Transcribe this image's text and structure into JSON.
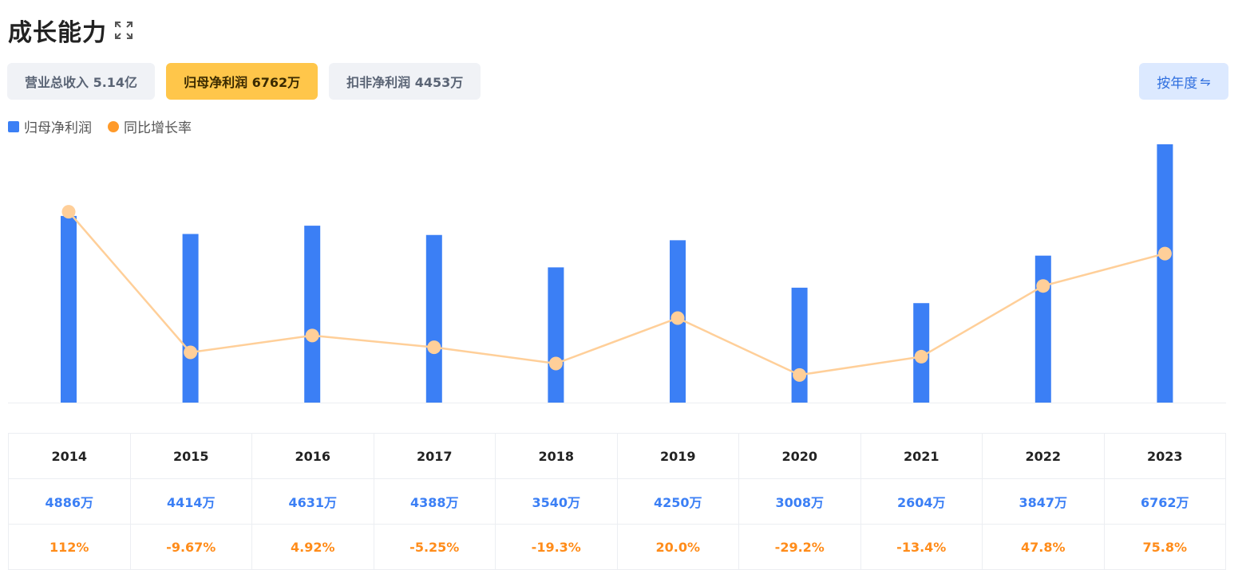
{
  "header": {
    "title": "成长能力",
    "expand_icon": "expand-icon"
  },
  "tabs": [
    {
      "label": "营业总收入 5.14亿",
      "active": false
    },
    {
      "label": "归母净利润 6762万",
      "active": true
    },
    {
      "label": "扣非净利润 4453万",
      "active": false
    }
  ],
  "period_button": {
    "label": "按年度",
    "icon": "swap-icon",
    "glyph": "⇋"
  },
  "legend": [
    {
      "label": "归母净利润",
      "color": "#3b7ff5"
    },
    {
      "label": "同比增长率",
      "color": "#ff9a2a"
    }
  ],
  "chart_data": {
    "type": "bar",
    "categories": [
      "2014",
      "2015",
      "2016",
      "2017",
      "2018",
      "2019",
      "2020",
      "2021",
      "2022",
      "2023"
    ],
    "series": [
      {
        "name": "归母净利润",
        "type": "bar",
        "unit": "万",
        "color": "#3b7ff5",
        "values": [
          4886,
          4414,
          4631,
          4388,
          3540,
          4250,
          3008,
          2604,
          3847,
          6762
        ]
      },
      {
        "name": "同比增长率",
        "type": "line",
        "unit": "%",
        "color": "#ffcf99",
        "values": [
          112,
          -9.67,
          4.92,
          -5.25,
          -19.3,
          20.0,
          -29.2,
          -13.4,
          47.8,
          75.8
        ]
      }
    ],
    "bar_ylim": [
      0,
      6762
    ],
    "line_ylim": [
      -60,
      140
    ],
    "grid": false,
    "legend_position": "top-left"
  },
  "table": {
    "years": [
      "2014",
      "2015",
      "2016",
      "2017",
      "2018",
      "2019",
      "2020",
      "2021",
      "2022",
      "2023"
    ],
    "values": [
      "4886万",
      "4414万",
      "4631万",
      "4388万",
      "3540万",
      "4250万",
      "3008万",
      "2604万",
      "3847万",
      "6762万"
    ],
    "rates": [
      "112%",
      "-9.67%",
      "4.92%",
      "-5.25%",
      "-19.3%",
      "20.0%",
      "-29.2%",
      "-13.4%",
      "47.8%",
      "75.8%"
    ]
  }
}
